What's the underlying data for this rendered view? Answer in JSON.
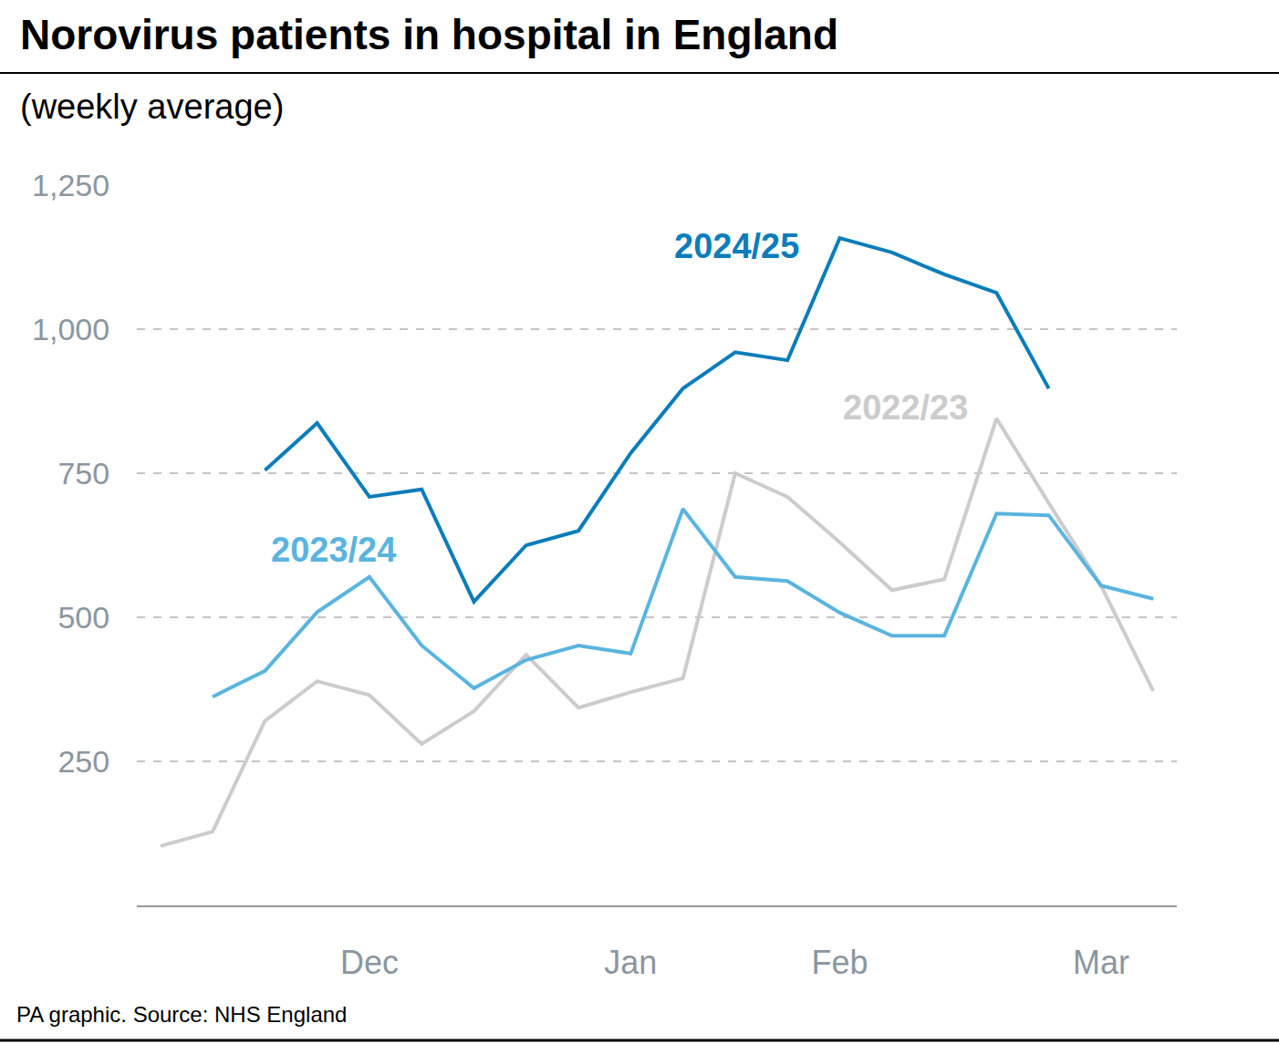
{
  "chart_data": {
    "type": "line",
    "title": "Norovirus patients in hospital in England",
    "subtitle": "(weekly average)",
    "source": "PA graphic. Source: NHS England",
    "categories": [
      null,
      null,
      null,
      null,
      "Dec",
      null,
      null,
      null,
      null,
      "Jan",
      null,
      null,
      null,
      "Feb",
      null,
      null,
      null,
      null,
      "Mar",
      null
    ],
    "series": [
      {
        "name": "2022/23",
        "color": "#cccccc",
        "values": [
          103,
          128,
          320,
          389,
          365,
          280,
          337,
          435,
          343,
          370,
          394,
          750,
          709,
          630,
          547,
          566,
          845,
          698,
          555,
          372
        ]
      },
      {
        "name": "2023/24",
        "color": "#5ab4df",
        "values": [
          null,
          362,
          407,
          509,
          570,
          451,
          377,
          426,
          451,
          437,
          688,
          570,
          563,
          508,
          468,
          468,
          680,
          677,
          555,
          532
        ]
      },
      {
        "name": "2024/25",
        "color": "#0b7dba",
        "values": [
          null,
          null,
          755,
          837,
          709,
          722,
          527,
          625,
          650,
          785,
          897,
          960,
          946,
          1158,
          1133,
          1095,
          1063,
          897,
          null,
          null
        ]
      }
    ],
    "ylim": [
      0,
      1250
    ],
    "yticks": [
      250,
      500,
      750,
      {
        "value": 1000,
        "label": "1,000"
      },
      {
        "value": 1250,
        "label": "1,250"
      }
    ],
    "grid": true
  }
}
